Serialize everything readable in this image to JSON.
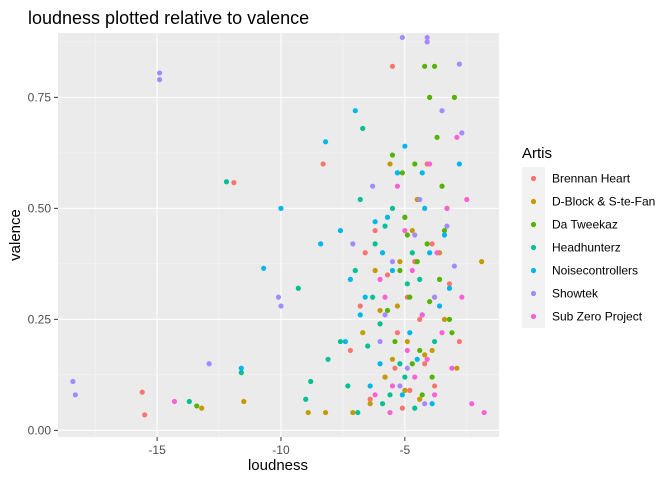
{
  "chart_data": {
    "type": "scatter",
    "title": "loudness plotted relative to valence",
    "xlabel": "loudness",
    "ylabel": "valence",
    "xlim": [
      -19,
      -1.2
    ],
    "ylim": [
      -0.015,
      0.895
    ],
    "x_ticks": [
      -15,
      -10,
      -5
    ],
    "x_tick_labels": [
      "-15",
      "-10",
      "-5"
    ],
    "y_ticks": [
      0.0,
      0.25,
      0.5,
      0.75
    ],
    "y_tick_labels": [
      "0.00",
      "0.25",
      "0.50",
      "0.75"
    ],
    "grid": true,
    "legend": {
      "title": "Artis",
      "placement": "right"
    },
    "series": [
      {
        "name": "Brennan Heart",
        "color": "#F8766D",
        "points": [
          [
            -15.6,
            0.086
          ],
          [
            -15.5,
            0.035
          ],
          [
            -11.9,
            0.558
          ],
          [
            -8.3,
            0.6
          ],
          [
            -5.5,
            0.82
          ],
          [
            -5.8,
            0.12
          ],
          [
            -6.2,
            0.45
          ],
          [
            -4.9,
            0.3
          ],
          [
            -5.3,
            0.22
          ],
          [
            -4.2,
            0.15
          ],
          [
            -6.8,
            0.28
          ],
          [
            -5.1,
            0.05
          ],
          [
            -4.6,
            0.38
          ],
          [
            -3.8,
            0.1
          ],
          [
            -7.2,
            0.18
          ],
          [
            -5.7,
            0.35
          ],
          [
            -4.4,
            0.25
          ],
          [
            -6.4,
            0.07
          ],
          [
            -3.5,
            0.55
          ],
          [
            -5.0,
            0.48
          ],
          [
            -2.8,
            0.2
          ],
          [
            -4.1,
            0.6
          ],
          [
            -6.0,
            0.24
          ],
          [
            -3.2,
            0.33
          ],
          [
            -5.4,
            0.14
          ],
          [
            -4.8,
            0.09
          ],
          [
            -6.6,
            0.4
          ],
          [
            -3.9,
            0.42
          ]
        ]
      },
      {
        "name": "D-Block & S-te-Fan",
        "color": "#C49A00",
        "points": [
          [
            -13.2,
            0.05
          ],
          [
            -11.5,
            0.065
          ],
          [
            -8.9,
            0.04
          ],
          [
            -8.2,
            0.04
          ],
          [
            -7.1,
            0.04
          ],
          [
            -6.4,
            0.06
          ],
          [
            -5.5,
            0.16
          ],
          [
            -4.9,
            0.2
          ],
          [
            -5.2,
            0.38
          ],
          [
            -4.5,
            0.52
          ],
          [
            -6.0,
            0.27
          ],
          [
            -3.8,
            0.3
          ],
          [
            -5.8,
            0.12
          ],
          [
            -4.2,
            0.17
          ],
          [
            -6.7,
            0.22
          ],
          [
            -5.0,
            0.09
          ],
          [
            -3.4,
            0.25
          ],
          [
            -4.7,
            0.45
          ],
          [
            -5.6,
            0.6
          ],
          [
            -3.9,
            0.18
          ],
          [
            -2.9,
            0.14
          ],
          [
            -1.9,
            0.38
          ],
          [
            -4.4,
            0.07
          ],
          [
            -6.2,
            0.36
          ],
          [
            -5.3,
            0.28
          ],
          [
            -3.6,
            0.4
          ]
        ]
      },
      {
        "name": "Da Tweekaz",
        "color": "#53B400",
        "points": [
          [
            -13.4,
            0.055
          ],
          [
            -5.2,
            0.36
          ],
          [
            -4.2,
            0.82
          ],
          [
            -3.8,
            0.82
          ],
          [
            -3.0,
            0.75
          ],
          [
            -4.0,
            0.75
          ],
          [
            -4.6,
            0.6
          ],
          [
            -3.5,
            0.55
          ],
          [
            -5.0,
            0.48
          ],
          [
            -4.8,
            0.3
          ],
          [
            -3.2,
            0.25
          ],
          [
            -5.4,
            0.2
          ],
          [
            -4.1,
            0.42
          ],
          [
            -3.7,
            0.66
          ],
          [
            -4.4,
            0.18
          ],
          [
            -5.7,
            0.27
          ],
          [
            -3.9,
            0.12
          ],
          [
            -4.5,
            0.38
          ],
          [
            -3.3,
            0.5
          ],
          [
            -5.1,
            0.58
          ],
          [
            -4.3,
            0.08
          ],
          [
            -3.6,
            0.34
          ],
          [
            -4.9,
            0.44
          ],
          [
            -5.5,
            0.62
          ],
          [
            -3.1,
            0.22
          ],
          [
            -4.7,
            0.15
          ],
          [
            -3.4,
            0.45
          ],
          [
            -4.0,
            0.29
          ]
        ]
      },
      {
        "name": "Headhunterz",
        "color": "#00C094",
        "points": [
          [
            -13.7,
            0.065
          ],
          [
            -12.2,
            0.56
          ],
          [
            -11.6,
            0.13
          ],
          [
            -9.3,
            0.32
          ],
          [
            -9.0,
            0.07
          ],
          [
            -8.8,
            0.11
          ],
          [
            -8.1,
            0.16
          ],
          [
            -7.3,
            0.1
          ],
          [
            -6.8,
            0.52
          ],
          [
            -6.2,
            0.42
          ],
          [
            -6.0,
            0.24
          ],
          [
            -5.6,
            0.08
          ],
          [
            -5.2,
            0.15
          ],
          [
            -4.9,
            0.33
          ],
          [
            -4.6,
            0.05
          ],
          [
            -5.8,
            0.46
          ],
          [
            -6.5,
            0.19
          ],
          [
            -7.0,
            0.36
          ],
          [
            -5.3,
            0.58
          ],
          [
            -4.3,
            0.26
          ],
          [
            -6.9,
            0.04
          ],
          [
            -7.6,
            0.2
          ],
          [
            -5.0,
            0.12
          ],
          [
            -6.3,
            0.3
          ],
          [
            -4.7,
            0.4
          ],
          [
            -5.9,
            0.06
          ],
          [
            -3.8,
            0.2
          ],
          [
            -6.7,
            0.68
          ],
          [
            -5.5,
            0.5
          ],
          [
            -4.4,
            0.34
          ]
        ]
      },
      {
        "name": "Noisecontrollers",
        "color": "#00B6EB",
        "points": [
          [
            -11.6,
            0.14
          ],
          [
            -10.7,
            0.365
          ],
          [
            -10.0,
            0.5
          ],
          [
            -8.4,
            0.42
          ],
          [
            -8.2,
            0.65
          ],
          [
            -7.6,
            0.45
          ],
          [
            -7.0,
            0.72
          ],
          [
            -6.2,
            0.47
          ],
          [
            -5.3,
            0.58
          ],
          [
            -5.0,
            0.64
          ],
          [
            -2.8,
            0.6
          ],
          [
            -4.2,
            0.5
          ],
          [
            -3.6,
            0.28
          ],
          [
            -4.8,
            0.22
          ],
          [
            -5.5,
            0.36
          ],
          [
            -6.6,
            0.3
          ],
          [
            -6.0,
            0.15
          ],
          [
            -7.4,
            0.2
          ],
          [
            -4.0,
            0.4
          ],
          [
            -3.2,
            0.32
          ],
          [
            -5.1,
            0.08
          ],
          [
            -6.4,
            0.1
          ],
          [
            -4.5,
            0.16
          ],
          [
            -3.9,
            0.06
          ],
          [
            -5.7,
            0.48
          ],
          [
            -7.2,
            0.34
          ],
          [
            -4.3,
            0.58
          ],
          [
            -3.4,
            0.44
          ],
          [
            -6.8,
            0.26
          ],
          [
            -5.9,
            0.4
          ]
        ]
      },
      {
        "name": "Showtek",
        "color": "#A58AFF",
        "points": [
          [
            -18.4,
            0.11
          ],
          [
            -18.3,
            0.08
          ],
          [
            -14.9,
            0.805
          ],
          [
            -14.9,
            0.79
          ],
          [
            -12.9,
            0.15
          ],
          [
            -10.1,
            0.3
          ],
          [
            -10.0,
            0.28
          ],
          [
            -5.1,
            0.885
          ],
          [
            -4.1,
            0.885
          ],
          [
            -4.1,
            0.875
          ],
          [
            -2.8,
            0.825
          ],
          [
            -3.5,
            0.72
          ],
          [
            -2.7,
            0.67
          ],
          [
            -5.5,
            0.38
          ],
          [
            -4.6,
            0.44
          ],
          [
            -3.8,
            0.3
          ],
          [
            -6.0,
            0.2
          ],
          [
            -5.2,
            0.1
          ],
          [
            -4.4,
            0.52
          ],
          [
            -3.0,
            0.37
          ],
          [
            -6.3,
            0.55
          ],
          [
            -5.8,
            0.26
          ],
          [
            -4.9,
            0.14
          ],
          [
            -3.3,
            0.46
          ],
          [
            -7.1,
            0.42
          ],
          [
            -4.2,
            0.06
          ]
        ]
      },
      {
        "name": "Sub Zero Project",
        "color": "#FB61D7",
        "points": [
          [
            -14.3,
            0.065
          ],
          [
            -6.2,
            0.08
          ],
          [
            -5.3,
            0.55
          ],
          [
            -4.6,
            0.12
          ],
          [
            -4.0,
            0.6
          ],
          [
            -3.5,
            0.22
          ],
          [
            -2.9,
            0.66
          ],
          [
            -2.5,
            0.52
          ],
          [
            -2.3,
            0.06
          ],
          [
            -1.8,
            0.04
          ],
          [
            -5.8,
            0.3
          ],
          [
            -4.9,
            0.18
          ],
          [
            -3.7,
            0.4
          ],
          [
            -5.5,
            0.1
          ],
          [
            -4.3,
            0.26
          ],
          [
            -3.1,
            0.14
          ],
          [
            -6.0,
            0.34
          ],
          [
            -5.0,
            0.45
          ],
          [
            -3.8,
            0.08
          ],
          [
            -4.7,
            0.36
          ],
          [
            -2.7,
            0.3
          ],
          [
            -5.6,
            0.04
          ],
          [
            -3.3,
            0.5
          ],
          [
            -4.1,
            0.16
          ]
        ]
      }
    ]
  }
}
